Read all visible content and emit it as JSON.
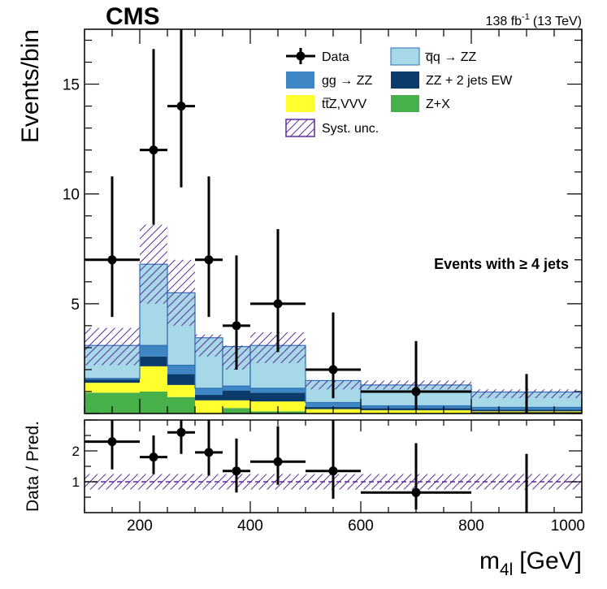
{
  "header": {
    "experiment": "CMS",
    "lumi": "138 fb",
    "lumi_sup": "-1",
    "energy": "(13 TeV)",
    "annotation": "Events with ≥ 4 jets"
  },
  "colors": {
    "qqZZ": "#a6d8e8",
    "ggZZ": "#3f86c4",
    "ZZjjEW": "#0b3b6b",
    "ttZVVV": "#ffff2e",
    "ZX": "#47b04b",
    "syst": "#5b2a9a",
    "hist_line": "#2f6fb5"
  },
  "legend": {
    "data": "Data",
    "qqZZ": "q̅q → ZZ",
    "ggZZ": "gg → ZZ",
    "ZZjjEW": "ZZ + 2 jets EW",
    "ttZVVV": "tt̅Z,VVV",
    "ZX": "Z+X",
    "syst": "Syst. unc."
  },
  "chart_data": [
    {
      "type": "bar",
      "stacked": true,
      "ylabel": "Events/bin",
      "xlim": [
        100,
        1000
      ],
      "ylim": [
        0,
        17.5
      ],
      "yticks": [
        5,
        10,
        15
      ],
      "bin_edges": [
        100,
        200,
        250,
        300,
        350,
        400,
        500,
        600,
        800,
        1000
      ],
      "series": [
        {
          "key": "ZX",
          "name": "Z+X",
          "values": [
            0.95,
            1.0,
            0.75,
            0.0,
            0.25,
            0.1,
            0.0,
            0.0,
            0.0
          ]
        },
        {
          "key": "ttZVVV",
          "name": "ttZ,VVV",
          "values": [
            0.45,
            1.15,
            0.55,
            0.6,
            0.35,
            0.45,
            0.2,
            0.15,
            0.1
          ]
        },
        {
          "key": "ZZjjEW",
          "name": "ZZ + 2 jets EW",
          "values": [
            0.15,
            0.45,
            0.5,
            0.25,
            0.45,
            0.4,
            0.1,
            0.1,
            0.08
          ]
        },
        {
          "key": "ggZZ",
          "name": "gg → ZZ",
          "values": [
            0.05,
            0.5,
            0.4,
            0.3,
            0.2,
            0.2,
            0.2,
            0.1,
            0.1
          ]
        },
        {
          "key": "qqZZ",
          "name": "qq → ZZ",
          "values": [
            1.5,
            3.7,
            3.3,
            2.3,
            1.8,
            1.95,
            1.0,
            0.95,
            0.7
          ]
        }
      ],
      "syst_band": {
        "name": "Syst. unc.",
        "low": [
          2.2,
          5.0,
          4.0,
          2.6,
          2.0,
          2.3,
          1.1,
          1.1,
          0.7
        ],
        "high": [
          3.9,
          8.6,
          7.0,
          3.6,
          3.1,
          3.7,
          1.5,
          1.5,
          1.1
        ]
      },
      "data_points": {
        "name": "Data",
        "x": [
          150,
          225,
          275,
          325,
          375,
          450,
          550,
          700,
          900
        ],
        "y": [
          7,
          12,
          14,
          7,
          4,
          5,
          2,
          1,
          0
        ],
        "xerr": [
          50,
          25,
          25,
          25,
          25,
          50,
          50,
          100,
          100
        ],
        "yerr_low": [
          2.6,
          3.4,
          3.7,
          2.6,
          2.0,
          2.2,
          1.3,
          0.8,
          0
        ],
        "yerr_high": [
          3.8,
          4.6,
          4.8,
          3.8,
          3.2,
          3.4,
          2.6,
          2.3,
          1.8
        ]
      }
    },
    {
      "type": "scatter",
      "ylabel": "Data / Pred.",
      "xlabel": "m",
      "xlabel_sub": "4l",
      "xlabel_unit": "[GeV]",
      "xlim": [
        100,
        1000
      ],
      "ylim": [
        0,
        3
      ],
      "xticks": [
        200,
        400,
        600,
        800,
        1000
      ],
      "yticks": [
        1,
        2
      ],
      "band": [
        0.75,
        1.25
      ],
      "points": {
        "x": [
          150,
          225,
          275,
          325,
          375,
          450,
          550,
          700,
          900
        ],
        "y": [
          2.3,
          1.8,
          2.6,
          1.95,
          1.35,
          1.65,
          1.35,
          0.65,
          0
        ],
        "xerr": [
          50,
          25,
          25,
          25,
          25,
          50,
          50,
          100,
          100
        ],
        "yerr_low": [
          0.9,
          0.55,
          0.7,
          0.75,
          0.7,
          0.75,
          0.9,
          0.55,
          0
        ],
        "yerr_high": [
          1.3,
          0.7,
          0.9,
          1.1,
          1.05,
          1.15,
          1.75,
          1.6,
          1.9
        ]
      },
      "show_point": [
        true,
        true,
        true,
        true,
        true,
        true,
        true,
        true,
        false
      ]
    }
  ]
}
